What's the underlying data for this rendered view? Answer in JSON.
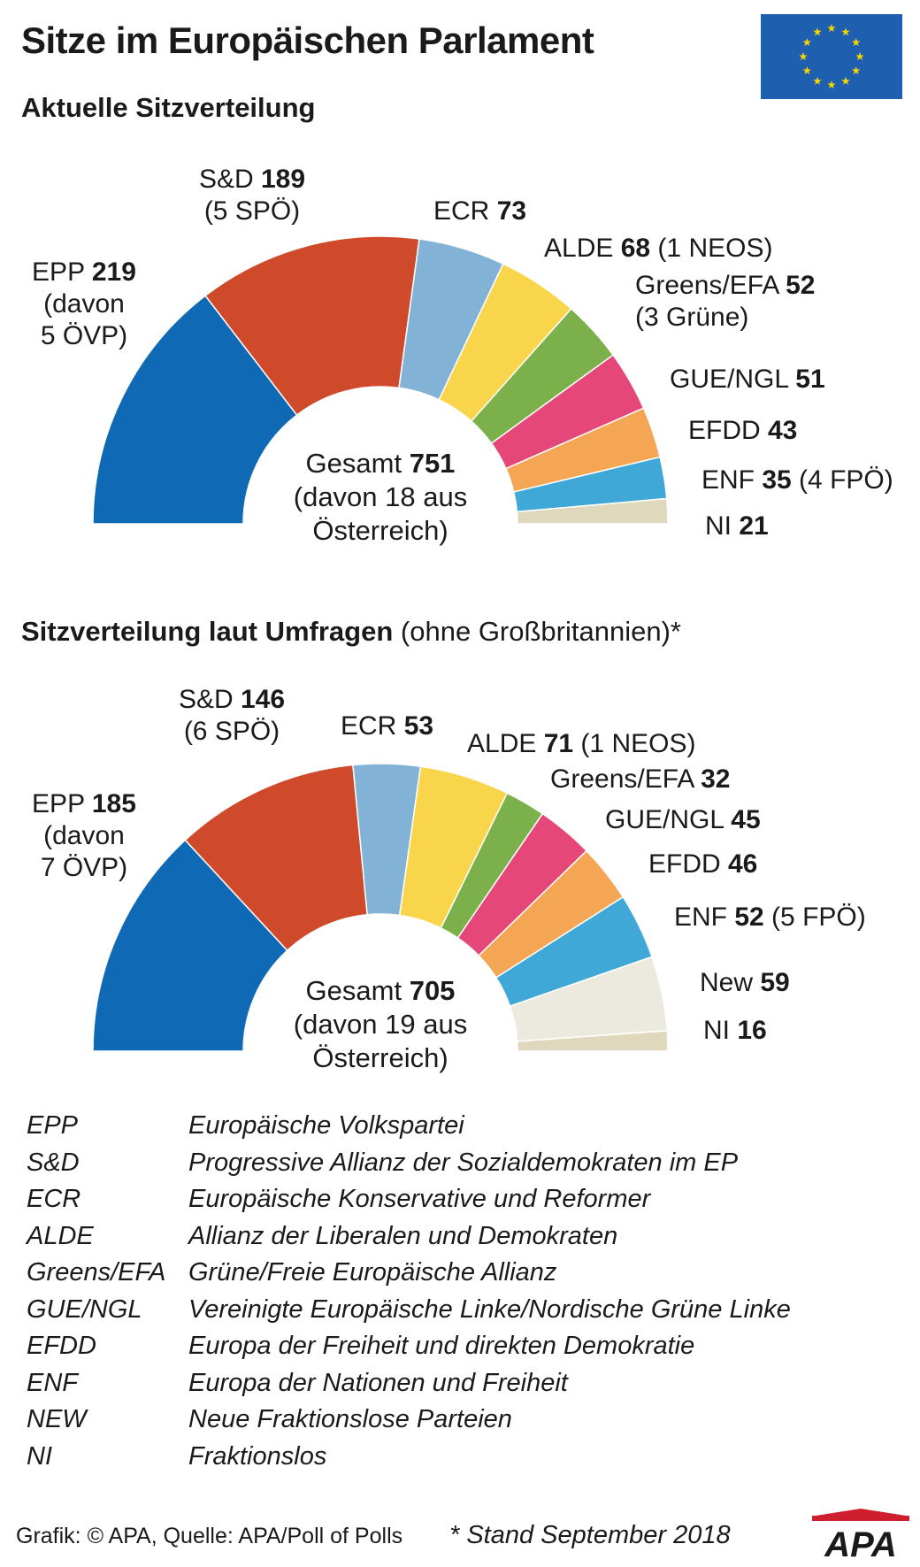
{
  "header": {
    "title": "Sitze im Europäischen Parlament",
    "flag_color": "#1f5fb0",
    "star_color": "#f5d400"
  },
  "chart_data": [
    {
      "type": "pie",
      "subtitle": "Aktuelle Sitzverteilung",
      "layout": "half-donut",
      "total_label": "Gesamt",
      "total": 751,
      "total_note_lines": [
        "(davon 18 aus",
        "Österreich)"
      ],
      "series": [
        {
          "name": "EPP",
          "value": 219,
          "note_lines": [
            "(davon",
            "5 ÖVP)"
          ],
          "color": "#0f69b4"
        },
        {
          "name": "S&D",
          "value": 189,
          "note_lines": [
            "(5 SPÖ)"
          ],
          "color": "#cf4a2b"
        },
        {
          "name": "ECR",
          "value": 73,
          "note_lines": [],
          "color": "#82b3d6"
        },
        {
          "name": "ALDE",
          "value": 68,
          "note_lines": [
            "(1 NEOS)"
          ],
          "color": "#f9d54b"
        },
        {
          "name": "Greens/EFA",
          "value": 52,
          "note_lines": [
            "(3 Grüne)"
          ],
          "color": "#7cb04a"
        },
        {
          "name": "GUE/NGL",
          "value": 51,
          "note_lines": [],
          "color": "#e54878"
        },
        {
          "name": "EFDD",
          "value": 43,
          "note_lines": [],
          "color": "#f5a654"
        },
        {
          "name": "ENF",
          "value": 35,
          "note_lines": [
            "(4 FPÖ)"
          ],
          "color": "#40a8d6"
        },
        {
          "name": "NI",
          "value": 21,
          "note_lines": [],
          "color": "#e0d8bd"
        }
      ]
    },
    {
      "type": "pie",
      "subtitle": "Sitzverteilung laut Umfragen",
      "subtitle_note": "(ohne Großbritannien)*",
      "layout": "half-donut",
      "total_label": "Gesamt",
      "total": 705,
      "total_note_lines": [
        "(davon 19 aus",
        "Österreich)"
      ],
      "series": [
        {
          "name": "EPP",
          "value": 185,
          "note_lines": [
            "(davon",
            "7 ÖVP)"
          ],
          "color": "#0f69b4"
        },
        {
          "name": "S&D",
          "value": 146,
          "note_lines": [
            "(6 SPÖ)"
          ],
          "color": "#cf4a2b"
        },
        {
          "name": "ECR",
          "value": 53,
          "note_lines": [],
          "color": "#82b3d6"
        },
        {
          "name": "ALDE",
          "value": 71,
          "note_lines": [
            "(1 NEOS)"
          ],
          "color": "#f9d54b"
        },
        {
          "name": "Greens/EFA",
          "value": 32,
          "note_lines": [],
          "color": "#7cb04a"
        },
        {
          "name": "GUE/NGL",
          "value": 45,
          "note_lines": [],
          "color": "#e54878"
        },
        {
          "name": "EFDD",
          "value": 46,
          "note_lines": [],
          "color": "#f5a654"
        },
        {
          "name": "ENF",
          "value": 52,
          "note_lines": [
            "(5 FPÖ)"
          ],
          "color": "#40a8d6"
        },
        {
          "name": "New",
          "value": 59,
          "note_lines": [],
          "color": "#eceadf"
        },
        {
          "name": "NI",
          "value": 16,
          "note_lines": [],
          "color": "#e0d8bd"
        }
      ]
    }
  ],
  "legend": [
    {
      "abbr": "EPP",
      "name": "Europäische Volkspartei"
    },
    {
      "abbr": "S&D",
      "name": "Progressive Allianz der Sozialdemokraten im EP"
    },
    {
      "abbr": "ECR",
      "name": "Europäische Konservative und Reformer"
    },
    {
      "abbr": "ALDE",
      "name": "Allianz der Liberalen und Demokraten"
    },
    {
      "abbr": "Greens/EFA",
      "name": "Grüne/Freie Europäische Allianz"
    },
    {
      "abbr": "GUE/NGL",
      "name": "Vereinigte Europäische Linke/Nordische Grüne Linke"
    },
    {
      "abbr": "EFDD",
      "name": "Europa der Freiheit und direkten Demokratie"
    },
    {
      "abbr": "ENF",
      "name": "Europa der Nationen und Freiheit"
    },
    {
      "abbr": "NEW",
      "name": "Neue Fraktionslose Parteien"
    },
    {
      "abbr": "NI",
      "name": "Fraktionslos"
    }
  ],
  "footer": {
    "credit": "Grafik: © APA, Quelle: APA/Poll of Polls",
    "footnote": "* Stand September 2018",
    "logo_text": "APA"
  }
}
